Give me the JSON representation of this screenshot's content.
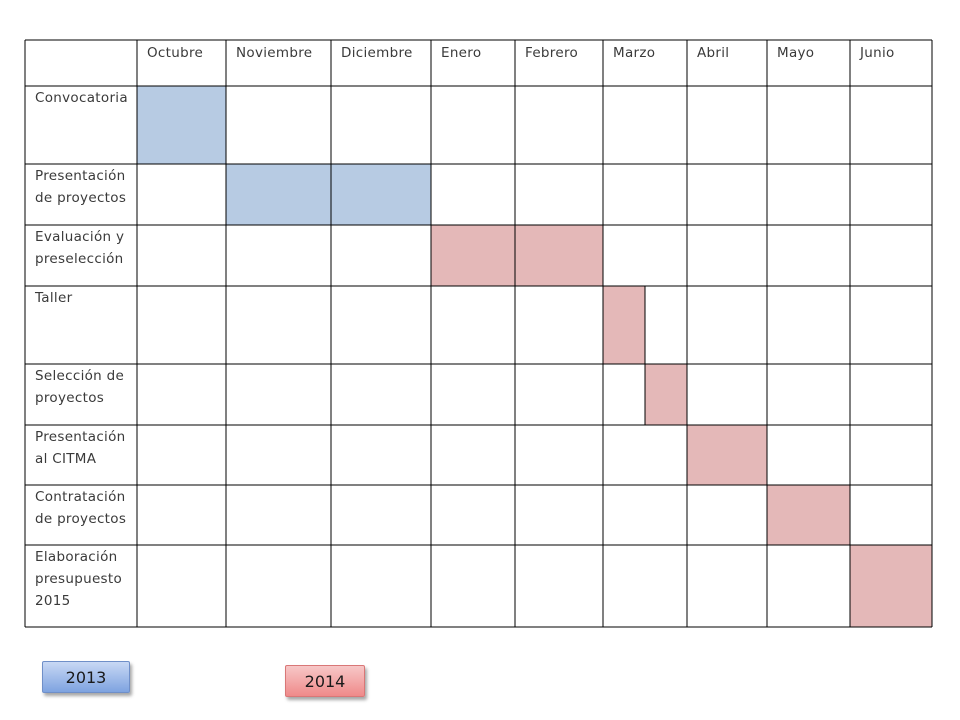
{
  "months": [
    "Octubre",
    "Noviembre",
    "Diciembre",
    "Enero",
    "Febrero",
    "Marzo",
    "Abril",
    "Mayo",
    "Junio"
  ],
  "tasks": [
    {
      "lines": [
        "Convocatoria"
      ],
      "start": 0,
      "end": 1,
      "year": "2013"
    },
    {
      "lines": [
        "Presentación",
        "de proyectos"
      ],
      "start": 1,
      "end": 3,
      "year": "2013"
    },
    {
      "lines": [
        "Evaluación y",
        "preselección"
      ],
      "start": 3,
      "end": 5,
      "year": "2014"
    },
    {
      "lines": [
        "Taller"
      ],
      "start": 5,
      "end": 5.5,
      "year": "2014"
    },
    {
      "lines": [
        "Selección de",
        "proyectos"
      ],
      "start": 5.5,
      "end": 6,
      "year": "2014"
    },
    {
      "lines": [
        "Presentación",
        "al CITMA"
      ],
      "start": 6,
      "end": 7,
      "year": "2014"
    },
    {
      "lines": [
        "Contratación",
        "de proyectos"
      ],
      "start": 7,
      "end": 8,
      "year": "2014"
    },
    {
      "lines": [
        "Elaboración",
        "presupuesto",
        "2015"
      ],
      "start": 8,
      "end": 9,
      "year": "2014"
    }
  ],
  "legend": {
    "year_2013": "2013",
    "year_2014": "2014"
  },
  "colors": {
    "2013": "#b7cbe3",
    "2014": "#e4b8b8",
    "grid": "#000000"
  }
}
